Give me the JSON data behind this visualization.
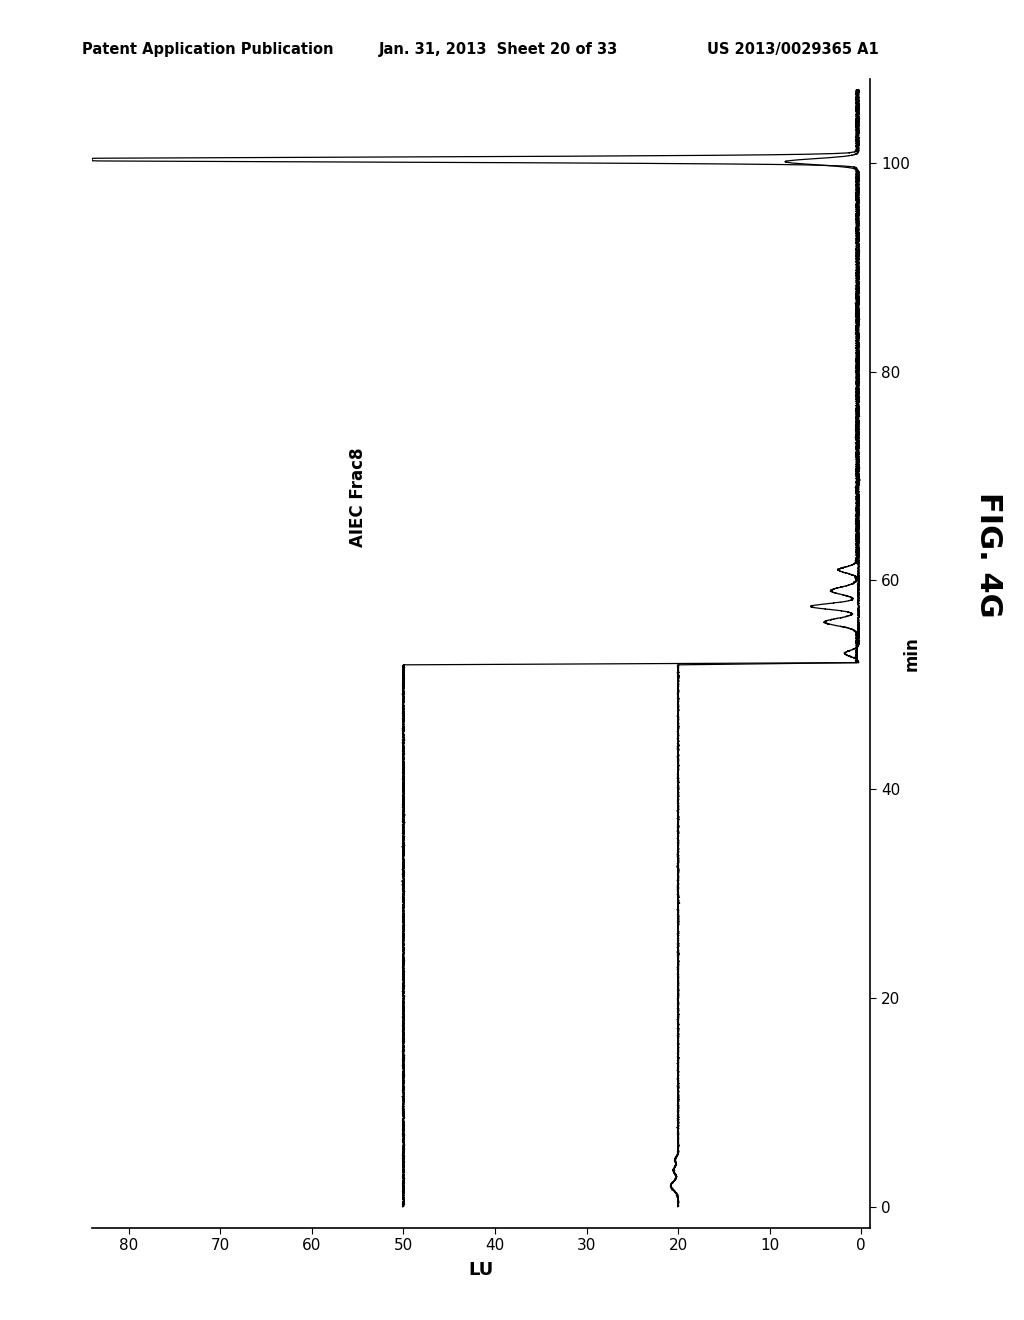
{
  "header_left": "Patent Application Publication",
  "header_mid": "Jan. 31, 2013  Sheet 20 of 33",
  "header_right": "US 2013/0029365 A1",
  "fig_label": "FIG. 4G",
  "time_label": "min",
  "lu_label": "LU",
  "annotation": "AIEC Frac8",
  "annotation_lu": 55,
  "annotation_time": 68,
  "time_ticks": [
    0,
    20,
    40,
    60,
    80,
    100
  ],
  "lu_ticks": [
    0,
    10,
    20,
    30,
    40,
    50,
    60,
    70,
    80
  ],
  "time_lim": [
    -2,
    108
  ],
  "lu_lim": [
    -1,
    84
  ],
  "upper_baseline": 50.0,
  "lower_baseline": 20.0,
  "line_color": "#000000",
  "bg_color": "#ffffff"
}
